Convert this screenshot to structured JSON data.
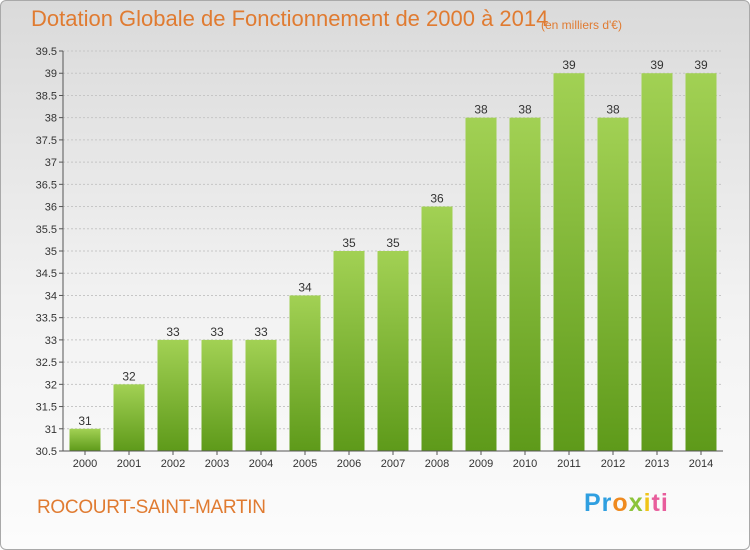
{
  "chart_data": {
    "type": "bar",
    "title": "Dotation Globale de Fonctionnement de 2000 à 2014",
    "subtitle": "(en milliers d'€)",
    "categories": [
      "2000",
      "2001",
      "2002",
      "2003",
      "2004",
      "2005",
      "2006",
      "2007",
      "2008",
      "2009",
      "2010",
      "2011",
      "2012",
      "2013",
      "2014"
    ],
    "values": [
      31,
      32,
      33,
      33,
      33,
      34,
      35,
      35,
      36,
      38,
      38,
      39,
      38,
      39,
      39
    ],
    "ylim": [
      30.5,
      39.5
    ],
    "yticks": [
      "30.5",
      "31",
      "31.5",
      "32",
      "32.5",
      "33",
      "33.5",
      "34",
      "34.5",
      "35",
      "35.5",
      "36",
      "36.5",
      "37",
      "37.5",
      "38",
      "38.5",
      "39",
      "39.5"
    ],
    "grid": true,
    "xlabel": "",
    "ylabel": "",
    "bar_color_top": "#a2d154",
    "bar_color_bottom": "#5e9a1a"
  },
  "footer": {
    "place": "ROCOURT-SAINT-MARTIN",
    "logo_parts": [
      "Pr",
      "o",
      "x",
      "i",
      "ti"
    ]
  }
}
